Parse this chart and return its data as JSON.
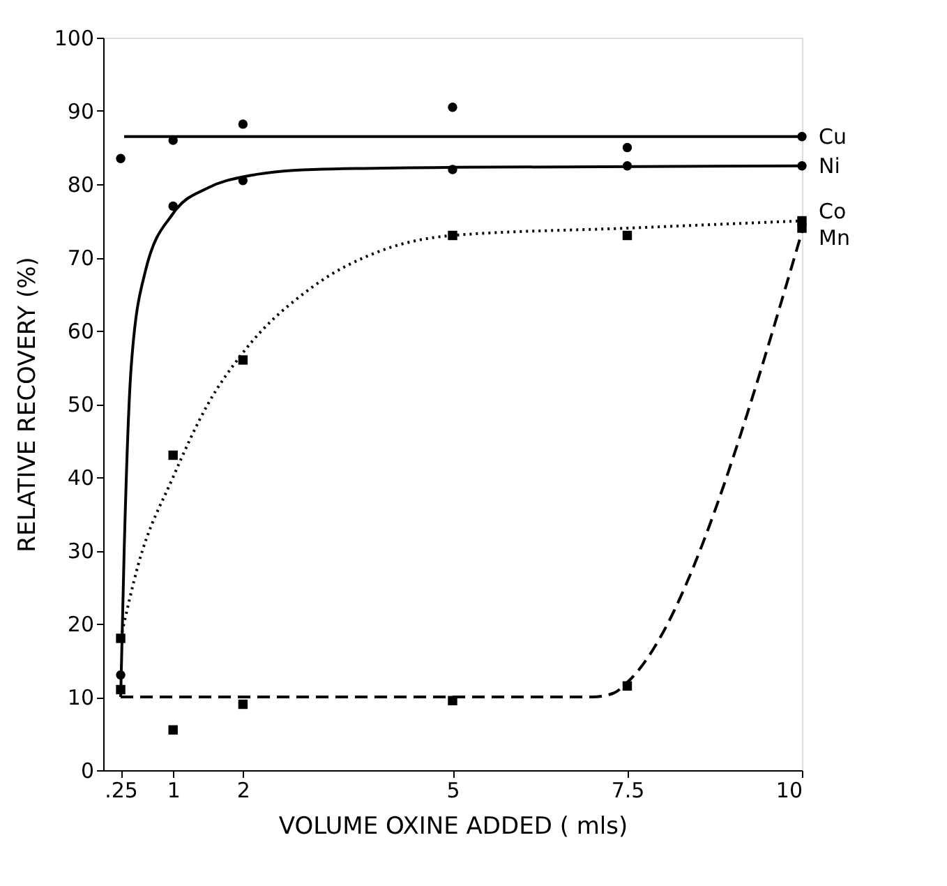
{
  "chart_data": {
    "type": "scatter",
    "xlabel": "VOLUME  OXINE  ADDED ( mls)",
    "ylabel": "RELATIVE  RECOVERY  (%)",
    "x": [
      0.25,
      1,
      2,
      5,
      7.5,
      10
    ],
    "xlim": [
      0,
      10
    ],
    "xticks": [
      {
        "value": 0.25,
        "label": ".25"
      },
      1,
      2,
      5,
      7.5,
      10
    ],
    "ylim": [
      0,
      100
    ],
    "yticks": [
      0,
      10,
      20,
      30,
      40,
      50,
      60,
      70,
      80,
      90,
      100
    ],
    "grid": false,
    "series": [
      {
        "name": "Cu",
        "marker": "circle",
        "color": "#000000",
        "values": [
          83.5,
          86,
          88.2,
          90.5,
          85,
          86.5
        ]
      },
      {
        "name": "Ni",
        "marker": "circle",
        "color": "#000000",
        "values": [
          13,
          77,
          80.5,
          82,
          82.5,
          82.5
        ]
      },
      {
        "name": "Co",
        "marker": "square",
        "color": "#000000",
        "values": [
          18,
          43,
          56,
          73,
          73,
          75
        ]
      },
      {
        "name": "Mn",
        "marker": "square",
        "color": "#000000",
        "values": [
          11,
          5.5,
          9,
          9.5,
          11.5,
          74
        ]
      },
      {
        "type": "line",
        "line_style": "solid",
        "color": "#000000",
        "x": [
          0.3,
          10
        ],
        "values": [
          86.5,
          86.5
        ]
      },
      {
        "type": "line",
        "line_style": "solid",
        "color": "#000000",
        "x": [
          0.25,
          0.3,
          0.4,
          0.6,
          1,
          1.5,
          2,
          3,
          5,
          10
        ],
        "values": [
          10,
          30,
          55,
          68,
          76,
          79.5,
          81,
          82,
          82.3,
          82.5
        ]
      },
      {
        "type": "line",
        "line_style": "dotted",
        "color": "#000000",
        "x": [
          0.25,
          0.5,
          1,
          1.5,
          2,
          3,
          4,
          5,
          7.5,
          10
        ],
        "values": [
          18,
          28,
          40,
          50,
          57,
          66,
          71,
          73,
          74,
          75
        ]
      },
      {
        "type": "line",
        "line_style": "dashed",
        "color": "#000000",
        "x": [
          0.25,
          7,
          7.3,
          7.5,
          10
        ],
        "values": [
          10,
          10,
          10.5,
          12,
          73.5
        ]
      }
    ]
  }
}
